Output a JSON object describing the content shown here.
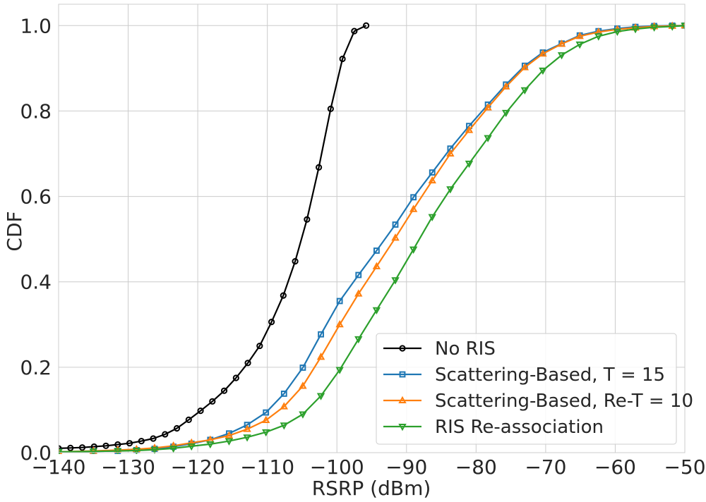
{
  "chart_data": {
    "type": "line",
    "xlabel": "RSRP (dBm)",
    "ylabel": "CDF",
    "xlim": [
      -140,
      -50
    ],
    "ylim": [
      0,
      1.05
    ],
    "xticks": [
      -140,
      -130,
      -120,
      -110,
      -100,
      -90,
      -80,
      -70,
      -60,
      -50
    ],
    "xtick_labels": [
      "−140",
      "−130",
      "−120",
      "−110",
      "−100",
      "−90",
      "−80",
      "−70",
      "−60",
      "−50"
    ],
    "yticks": [
      0,
      0.2,
      0.4,
      0.6,
      0.8,
      1.0
    ],
    "ytick_labels": [
      "0.0",
      "0.2",
      "0.4",
      "0.6",
      "0.8",
      "1.0"
    ],
    "grid": true,
    "legend_position": "bottom-right",
    "series": [
      {
        "name": "No RIS",
        "color": "#000000",
        "marker": "circle",
        "x": [
          -140,
          -138.3,
          -136.6,
          -134.9,
          -133.2,
          -131.5,
          -129.8,
          -128.1,
          -126.4,
          -124.7,
          -123.0,
          -121.3,
          -119.6,
          -117.9,
          -116.2,
          -114.5,
          -112.8,
          -111.1,
          -109.4,
          -107.7,
          -106.0,
          -104.3,
          -102.6,
          -100.9,
          -99.2,
          -97.5,
          -95.8
        ],
        "y": [
          0.01,
          0.011,
          0.012,
          0.014,
          0.016,
          0.019,
          0.022,
          0.027,
          0.033,
          0.043,
          0.057,
          0.077,
          0.098,
          0.12,
          0.145,
          0.175,
          0.21,
          0.25,
          0.306,
          0.368,
          0.448,
          0.546,
          0.668,
          0.805,
          0.922,
          0.987,
          1.0
        ]
      },
      {
        "name": "Scattering-Based, T = 15",
        "color": "#1f77b4",
        "marker": "square",
        "x": [
          -140,
          -135,
          -131.5,
          -128.8,
          -126.2,
          -123.5,
          -120.9,
          -118.2,
          -115.5,
          -112.9,
          -110.2,
          -107.6,
          -104.9,
          -102.3,
          -99.6,
          -96.9,
          -94.3,
          -91.6,
          -89.0,
          -86.3,
          -83.7,
          -81.0,
          -78.3,
          -75.7,
          -73.0,
          -70.4,
          -67.7,
          -65.1,
          -62.4,
          -59.7,
          -57.1,
          -54.4,
          -51.8,
          -50
        ],
        "y": [
          0.002,
          0.003,
          0.004,
          0.006,
          0.009,
          0.014,
          0.021,
          0.03,
          0.045,
          0.065,
          0.094,
          0.138,
          0.199,
          0.277,
          0.355,
          0.416,
          0.473,
          0.534,
          0.598,
          0.656,
          0.712,
          0.765,
          0.815,
          0.862,
          0.906,
          0.937,
          0.958,
          0.977,
          0.987,
          0.993,
          0.997,
          0.999,
          1.0,
          1.0
        ]
      },
      {
        "name": "Scattering-Based, Re-T = 10",
        "color": "#ff7f0e",
        "marker": "triangle-up",
        "x": [
          -140,
          -135,
          -131.5,
          -128.8,
          -126.2,
          -123.5,
          -120.9,
          -118.2,
          -115.5,
          -112.9,
          -110.2,
          -107.6,
          -104.9,
          -102.3,
          -99.6,
          -96.9,
          -94.3,
          -91.6,
          -89.0,
          -86.3,
          -83.7,
          -81.0,
          -78.3,
          -75.7,
          -73.0,
          -70.4,
          -67.7,
          -65.1,
          -62.4,
          -59.7,
          -57.1,
          -54.4,
          -51.8,
          -50
        ],
        "y": [
          0.002,
          0.004,
          0.006,
          0.008,
          0.011,
          0.016,
          0.023,
          0.03,
          0.04,
          0.055,
          0.076,
          0.108,
          0.156,
          0.224,
          0.3,
          0.372,
          0.436,
          0.503,
          0.57,
          0.637,
          0.7,
          0.755,
          0.808,
          0.857,
          0.902,
          0.934,
          0.957,
          0.975,
          0.985,
          0.991,
          0.995,
          0.998,
          0.999,
          1.0
        ]
      },
      {
        "name": "RIS Re-association",
        "color": "#2ca02c",
        "marker": "triangle-down",
        "x": [
          -140,
          -135,
          -131.5,
          -128.8,
          -126.2,
          -123.5,
          -120.9,
          -118.2,
          -115.5,
          -112.9,
          -110.2,
          -107.6,
          -104.9,
          -102.3,
          -99.6,
          -96.9,
          -94.3,
          -91.6,
          -89.0,
          -86.3,
          -83.7,
          -81.0,
          -78.3,
          -75.7,
          -73.0,
          -70.4,
          -67.7,
          -65.1,
          -62.4,
          -59.7,
          -57.1,
          -54.4,
          -51.8,
          -50
        ],
        "y": [
          0.002,
          0.003,
          0.004,
          0.005,
          0.007,
          0.01,
          0.015,
          0.02,
          0.027,
          0.036,
          0.048,
          0.064,
          0.09,
          0.133,
          0.194,
          0.266,
          0.334,
          0.404,
          0.476,
          0.552,
          0.617,
          0.677,
          0.737,
          0.796,
          0.849,
          0.895,
          0.931,
          0.956,
          0.975,
          0.986,
          0.992,
          0.996,
          0.998,
          1.0
        ]
      }
    ]
  }
}
